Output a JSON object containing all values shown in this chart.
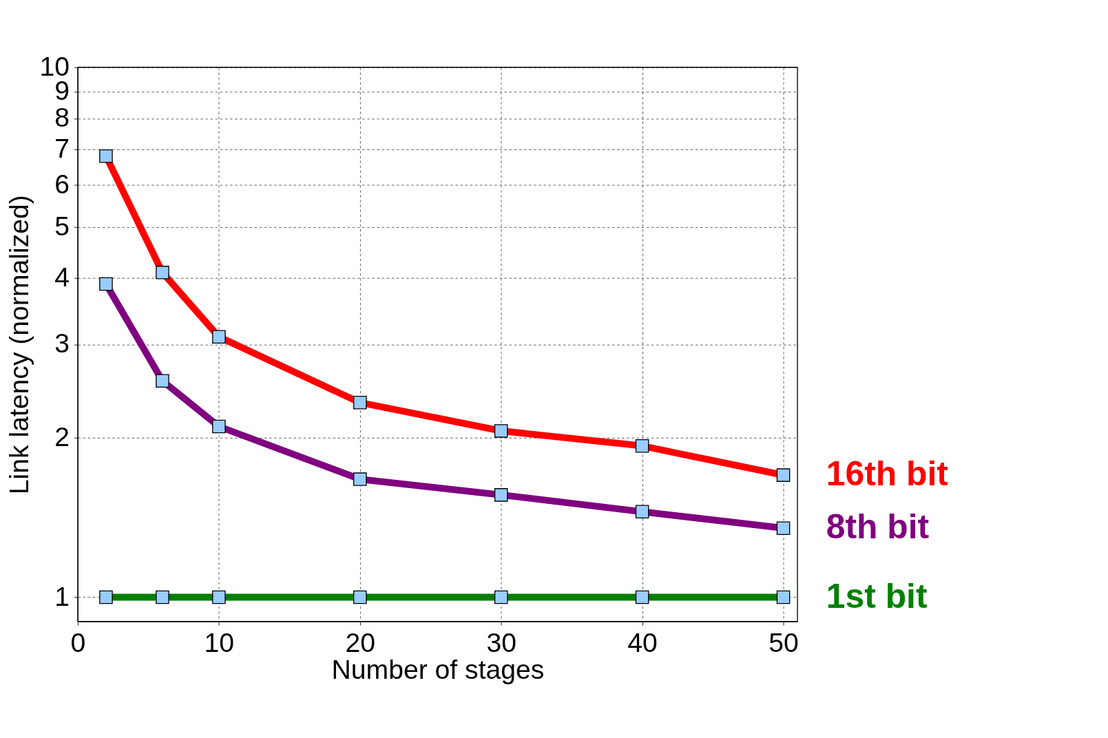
{
  "chart_data": {
    "type": "line",
    "xlabel": "Number of stages",
    "ylabel": "Link latency (normalized)",
    "x": [
      2,
      6,
      10,
      20,
      30,
      40,
      50
    ],
    "series": [
      {
        "name": "16th bit",
        "color": "#ff0000",
        "values": [
          6.8,
          4.1,
          3.1,
          2.33,
          2.06,
          1.93,
          1.7
        ]
      },
      {
        "name": "8th bit",
        "color": "#800080",
        "values": [
          3.9,
          2.56,
          2.1,
          1.67,
          1.56,
          1.45,
          1.35
        ]
      },
      {
        "name": "1st bit",
        "color": "#008000",
        "values": [
          1,
          1,
          1,
          1,
          1,
          1,
          1
        ]
      }
    ],
    "xlim": [
      0,
      51
    ],
    "xticks": [
      0,
      10,
      20,
      30,
      40,
      50
    ],
    "ylim": [
      0.9,
      10
    ],
    "yticks": [
      1,
      2,
      3,
      4,
      5,
      6,
      7,
      8,
      9,
      10
    ],
    "log": "y",
    "grid": true,
    "legend": false,
    "marker": "square",
    "line_style": "solid"
  }
}
